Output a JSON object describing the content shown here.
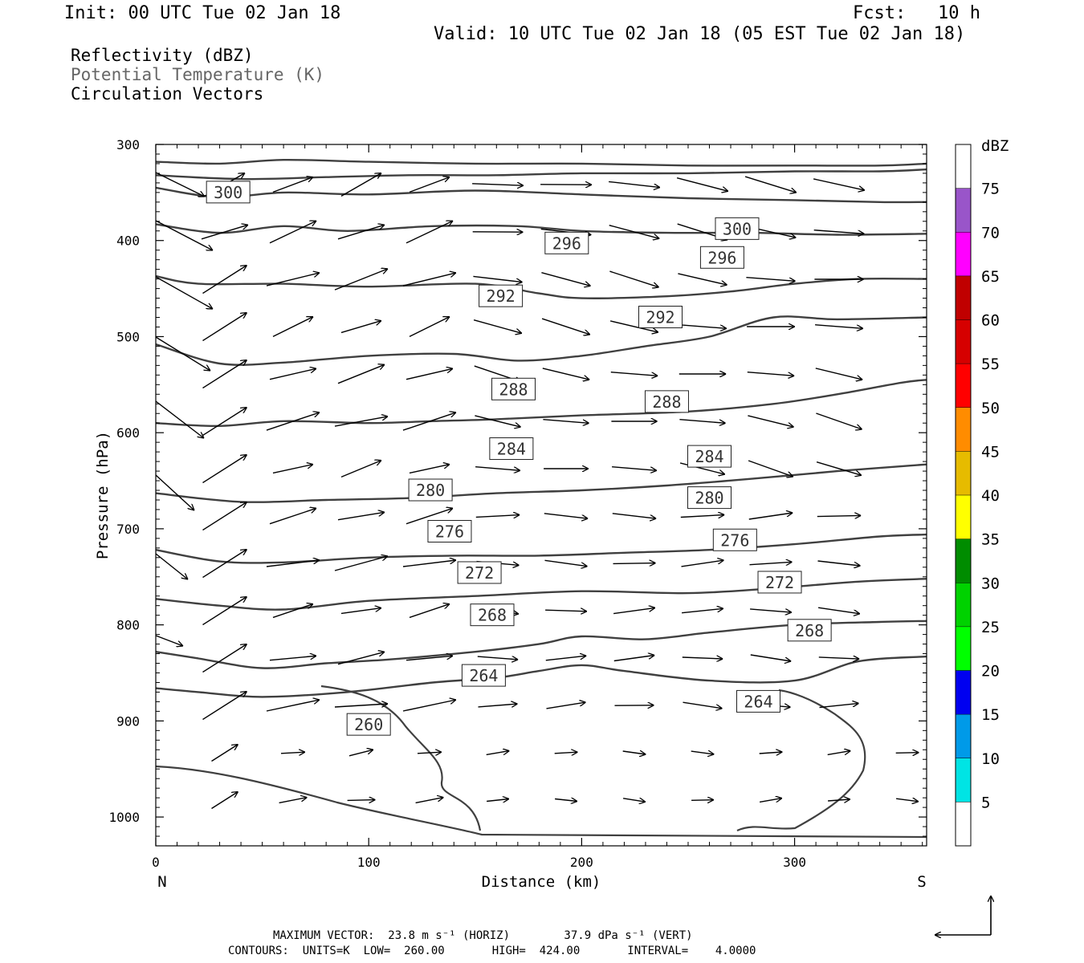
{
  "header": {
    "init": "Init: 00 UTC Tue 02 Jan 18",
    "fcst": "Fcst:   10 h",
    "valid": "Valid: 10 UTC Tue 02 Jan 18 (05 EST Tue 02 Jan 18)"
  },
  "legend": {
    "reflectivity": "Reflectivity (dBZ)",
    "theta": "Potential Temperature (K)",
    "vectors": "Circulation Vectors"
  },
  "footer": {
    "line1": "MAXIMUM VECTOR:  23.8 m s⁻¹ (HORIZ)        37.9 dPa s⁻¹ (VERT)",
    "line2": "CONTOURS:  UNITS=K  LOW=  260.00       HIGH=  424.00       INTERVAL=    4.0000"
  },
  "colors": {
    "contour": "#404040",
    "vector": "#000000",
    "axes": "#000000"
  },
  "chart_data": {
    "type": "cross-section",
    "xlabel": "Distance (km)",
    "ylabel": "Pressure (hPa)",
    "xlim": [
      0,
      362
    ],
    "ylim": [
      1030,
      300
    ],
    "x_ticks": [
      0,
      100,
      200,
      300
    ],
    "y_ticks": [
      300,
      400,
      500,
      600,
      700,
      800,
      900,
      1000
    ],
    "x_end_labels": {
      "left": "N",
      "right": "S"
    },
    "colorbar": {
      "title": "dBZ",
      "levels": [
        5,
        10,
        15,
        20,
        25,
        30,
        35,
        40,
        45,
        50,
        55,
        60,
        65,
        70,
        75
      ],
      "colors": [
        "#ffffff",
        "#00e4e4",
        "#009ae8",
        "#0000f0",
        "#00ff00",
        "#00d200",
        "#008c00",
        "#ffff00",
        "#e6bb00",
        "#ff8c00",
        "#ff0000",
        "#d60000",
        "#c00000",
        "#ff00ff",
        "#9955c9",
        "#ffffff"
      ]
    },
    "contours": [
      {
        "x": [
          0,
          30,
          60,
          100,
          150,
          200,
          250,
          300,
          340,
          362
        ],
        "y": [
          318,
          320,
          316,
          318,
          320,
          320,
          322,
          322,
          322,
          320
        ]
      },
      {
        "x": [
          0,
          40,
          80,
          120,
          160,
          200,
          250,
          300,
          340,
          362
        ],
        "y": [
          332,
          336,
          334,
          332,
          332,
          330,
          330,
          328,
          328,
          326
        ]
      },
      {
        "x": [
          0,
          30,
          60,
          100,
          150,
          200,
          250,
          300,
          340,
          362
        ],
        "y": [
          345,
          355,
          350,
          352,
          348,
          352,
          356,
          358,
          360,
          360
        ]
      },
      {
        "x": [
          0,
          30,
          60,
          90,
          130,
          170,
          200,
          240,
          280,
          320,
          362
        ],
        "y": [
          383,
          392,
          385,
          390,
          385,
          385,
          390,
          392,
          392,
          394,
          393
        ]
      },
      {
        "x": [
          0,
          20,
          60,
          100,
          150,
          180,
          200,
          240,
          270,
          300,
          330,
          362
        ],
        "y": [
          437,
          445,
          445,
          448,
          445,
          455,
          460,
          458,
          453,
          445,
          440,
          440
        ]
      },
      {
        "x": [
          0,
          30,
          60,
          100,
          140,
          170,
          200,
          230,
          260,
          290,
          320,
          362
        ],
        "y": [
          508,
          528,
          527,
          520,
          518,
          525,
          520,
          510,
          500,
          480,
          482,
          480
        ]
      },
      {
        "x": [
          0,
          30,
          60,
          100,
          130,
          160,
          200,
          250,
          290,
          320,
          350,
          362
        ],
        "y": [
          590,
          593,
          588,
          590,
          588,
          586,
          582,
          578,
          570,
          560,
          548,
          545
        ]
      },
      {
        "x": [
          0,
          40,
          80,
          120,
          160,
          200,
          240,
          280,
          320,
          362
        ],
        "y": [
          663,
          672,
          670,
          668,
          663,
          660,
          655,
          648,
          640,
          633
        ]
      },
      {
        "x": [
          0,
          30,
          60,
          100,
          140,
          180,
          220,
          260,
          300,
          340,
          362
        ],
        "y": [
          722,
          734,
          735,
          730,
          728,
          728,
          725,
          722,
          716,
          708,
          706
        ]
      },
      {
        "x": [
          0,
          30,
          60,
          100,
          150,
          200,
          250,
          290,
          330,
          362
        ],
        "y": [
          773,
          780,
          784,
          775,
          770,
          765,
          767,
          762,
          755,
          752
        ]
      },
      {
        "x": [
          0,
          20,
          50,
          80,
          110,
          150,
          180,
          200,
          230,
          260,
          300,
          340,
          362
        ],
        "y": [
          828,
          835,
          845,
          840,
          836,
          828,
          820,
          812,
          815,
          808,
          800,
          797,
          796
        ]
      },
      {
        "x": [
          0,
          20,
          50,
          90,
          130,
          160,
          180,
          200,
          220,
          260,
          300,
          330,
          362
        ],
        "y": [
          866,
          870,
          875,
          870,
          860,
          855,
          848,
          842,
          848,
          858,
          858,
          838,
          833
        ]
      }
    ],
    "contour_labels": [
      {
        "x": 34,
        "y": 350,
        "text": "300"
      },
      {
        "x": 273,
        "y": 388,
        "text": "300"
      },
      {
        "x": 193,
        "y": 403,
        "text": "296"
      },
      {
        "x": 266,
        "y": 418,
        "text": "296"
      },
      {
        "x": 162,
        "y": 458,
        "text": "292"
      },
      {
        "x": 237,
        "y": 480,
        "text": "292"
      },
      {
        "x": 168,
        "y": 555,
        "text": "288"
      },
      {
        "x": 240,
        "y": 568,
        "text": "288"
      },
      {
        "x": 167,
        "y": 617,
        "text": "284"
      },
      {
        "x": 260,
        "y": 625,
        "text": "284"
      },
      {
        "x": 129,
        "y": 660,
        "text": "280"
      },
      {
        "x": 260,
        "y": 668,
        "text": "280"
      },
      {
        "x": 138,
        "y": 703,
        "text": "276"
      },
      {
        "x": 272,
        "y": 712,
        "text": "276"
      },
      {
        "x": 152,
        "y": 746,
        "text": "272"
      },
      {
        "x": 293,
        "y": 756,
        "text": "272"
      },
      {
        "x": 158,
        "y": 790,
        "text": "268"
      },
      {
        "x": 307,
        "y": 806,
        "text": "268"
      },
      {
        "x": 154,
        "y": 853,
        "text": "264"
      },
      {
        "x": 283,
        "y": 880,
        "text": "264"
      },
      {
        "x": 100,
        "y": 904,
        "text": "260"
      }
    ]
  }
}
